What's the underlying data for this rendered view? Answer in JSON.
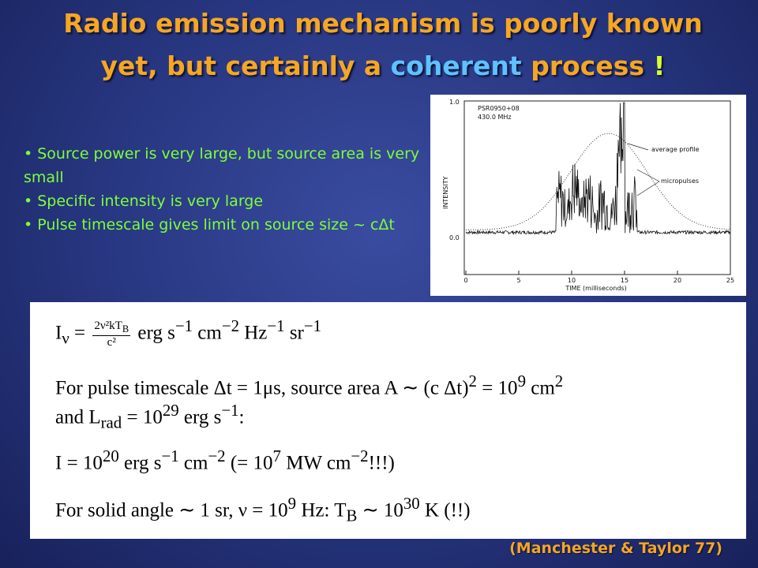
{
  "title": {
    "line1": "Radio emission mechanism is poorly known",
    "line2_start": "yet, but certainly a ",
    "highlight": "coherent",
    "line2_mid": " process ",
    "exclamation": "!"
  },
  "bullets": [
    "• Source power is very large, but source area is very small",
    "• Specific intensity is very large",
    "• Pulse timescale gives limit on source size ~ cΔt"
  ],
  "figure": {
    "source": "PSR0950+08",
    "frequency": "430.0 MHz",
    "ylabel": "INTENSITY",
    "xlabel": "TIME (milliseconds)",
    "yticks": [
      "1.0",
      "0.0"
    ],
    "xticks": [
      "0",
      "5",
      "10",
      "15",
      "20",
      "25"
    ],
    "annotations": [
      "average profile",
      "micropulses"
    ]
  },
  "equations": [
    [
      {
        "text": "I"
      },
      {
        "sub": "ν"
      },
      {
        "text": " = "
      },
      {
        "frac": {
          "num": [
            {
              "text": "2ν²kT"
            },
            {
              "sub": "B"
            }
          ],
          "den": [
            {
              "text": "c²"
            }
          ]
        }
      },
      {
        "text": " erg s"
      },
      {
        "sup": "−1"
      },
      {
        "text": " cm"
      },
      {
        "sup": "−2"
      },
      {
        "text": " Hz"
      },
      {
        "sup": "−1"
      },
      {
        "text": " sr"
      },
      {
        "sup": "−1"
      }
    ],
    [
      {
        "text": "For pulse timescale Δt = 1μs, source area A ∼ (c Δt)"
      },
      {
        "sup": "2"
      },
      {
        "text": " = 10"
      },
      {
        "sup": "9"
      },
      {
        "text": " cm"
      },
      {
        "sup": "2"
      }
    ],
    [
      {
        "text": "and L"
      },
      {
        "sub": "rad"
      },
      {
        "text": " = 10"
      },
      {
        "sup": "29"
      },
      {
        "text": " erg s"
      },
      {
        "sup": "−1"
      },
      {
        "text": ":"
      }
    ],
    [
      {
        "text": "I = 10"
      },
      {
        "sup": "20"
      },
      {
        "text": " erg s"
      },
      {
        "sup": "−1"
      },
      {
        "text": " cm"
      },
      {
        "sup": "−2"
      },
      {
        "text": " (= 10"
      },
      {
        "sup": "7"
      },
      {
        "text": " MW cm"
      },
      {
        "sup": "−2"
      },
      {
        "text": "!!!)"
      }
    ],
    [
      {
        "text": "For solid angle ∼ 1 sr, ν = 10"
      },
      {
        "sup": "9"
      },
      {
        "text": " Hz: T"
      },
      {
        "sub": "B"
      },
      {
        "text": " ∼ 10"
      },
      {
        "sup": "30"
      },
      {
        "text": " K (!!)"
      }
    ]
  ],
  "credit": "(Manchester & Taylor 77)"
}
